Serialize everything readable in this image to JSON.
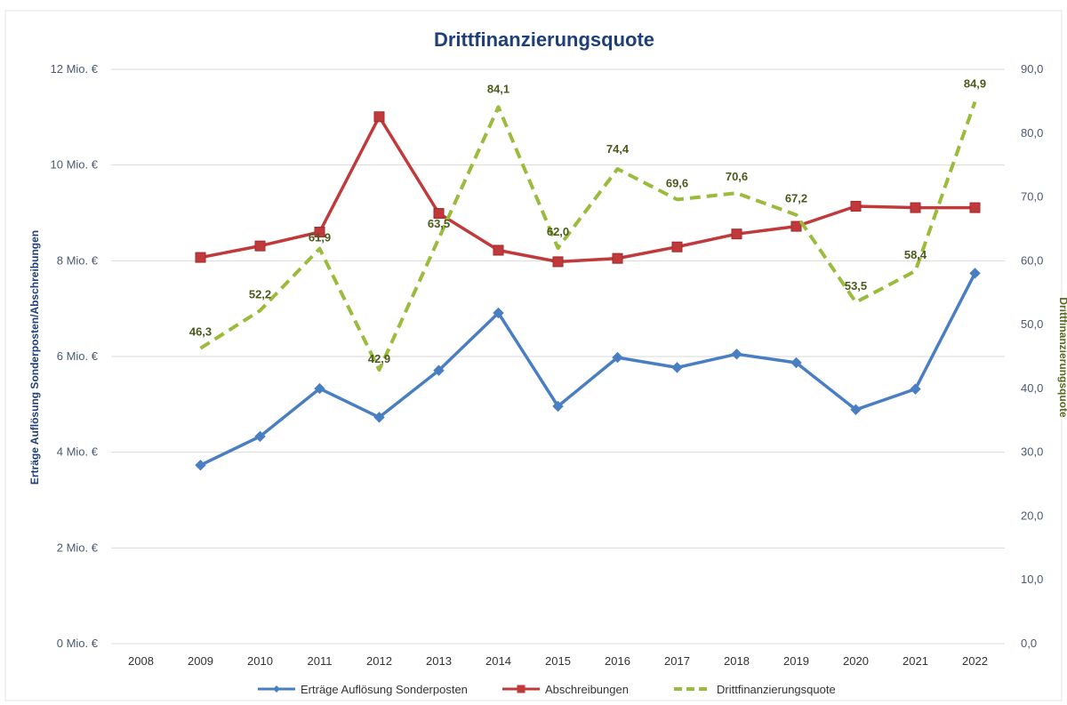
{
  "chart_data": {
    "type": "line",
    "title": "Drittfinanzierungsquote",
    "ylabel": "Erträge Auflösung Sonderposten/Abschreibungen",
    "ylabel_right": "Drittfinanzierungsquote",
    "categories": [
      "2008",
      "2009",
      "2010",
      "2011",
      "2012",
      "2013",
      "2014",
      "2015",
      "2016",
      "2017",
      "2018",
      "2019",
      "2020",
      "2021",
      "2022"
    ],
    "ylim": [
      0,
      12
    ],
    "ylim_right": [
      0,
      90
    ],
    "y_ticks": [
      {
        "value": 0,
        "label": "0 Mio. €"
      },
      {
        "value": 2,
        "label": "2 Mio. €"
      },
      {
        "value": 4,
        "label": "4 Mio. €"
      },
      {
        "value": 6,
        "label": "6 Mio. €"
      },
      {
        "value": 8,
        "label": "8 Mio. €"
      },
      {
        "value": 10,
        "label": "10 Mio. €"
      },
      {
        "value": 12,
        "label": "12 Mio. €"
      }
    ],
    "y_right_ticks": [
      {
        "value": 0,
        "label": "0,0"
      },
      {
        "value": 10,
        "label": "10,0"
      },
      {
        "value": 20,
        "label": "20,0"
      },
      {
        "value": 30,
        "label": "30,0"
      },
      {
        "value": 40,
        "label": "40,0"
      },
      {
        "value": 50,
        "label": "50,0"
      },
      {
        "value": 60,
        "label": "60,0"
      },
      {
        "value": 70,
        "label": "70,0"
      },
      {
        "value": 80,
        "label": "80,0"
      },
      {
        "value": 90,
        "label": "90,0"
      }
    ],
    "grid": true,
    "legend_position": "bottom",
    "series": [
      {
        "name": "Erträge Auflösung Sonderposten",
        "axis": "left",
        "color": "#4a7ec2",
        "marker": "diamond",
        "values": [
          null,
          3.73,
          4.33,
          5.33,
          4.73,
          5.71,
          6.91,
          4.96,
          5.98,
          5.77,
          6.05,
          5.87,
          4.89,
          5.32,
          7.74
        ]
      },
      {
        "name": "Abschreibungen",
        "axis": "left",
        "color": "#c0393b",
        "marker": "square",
        "values": [
          null,
          8.07,
          8.31,
          8.6,
          11.01,
          8.99,
          8.22,
          7.98,
          8.05,
          8.29,
          8.56,
          8.72,
          9.14,
          9.11,
          9.11
        ]
      },
      {
        "name": "Drittfinanzierungsquote",
        "axis": "right",
        "color": "#9bbb3d",
        "dashed": true,
        "values": [
          null,
          46.3,
          52.2,
          61.9,
          42.9,
          63.5,
          84.1,
          62.0,
          74.4,
          69.6,
          70.6,
          67.2,
          53.5,
          58.4,
          84.9
        ],
        "data_labels": [
          "",
          "46,3",
          "52,2",
          "61,9",
          "42,9",
          "63,5",
          "84,1",
          "62,0",
          "74,4",
          "69,6",
          "70,6",
          "67,2",
          "53,5",
          "58,4",
          "84,9"
        ]
      }
    ]
  }
}
